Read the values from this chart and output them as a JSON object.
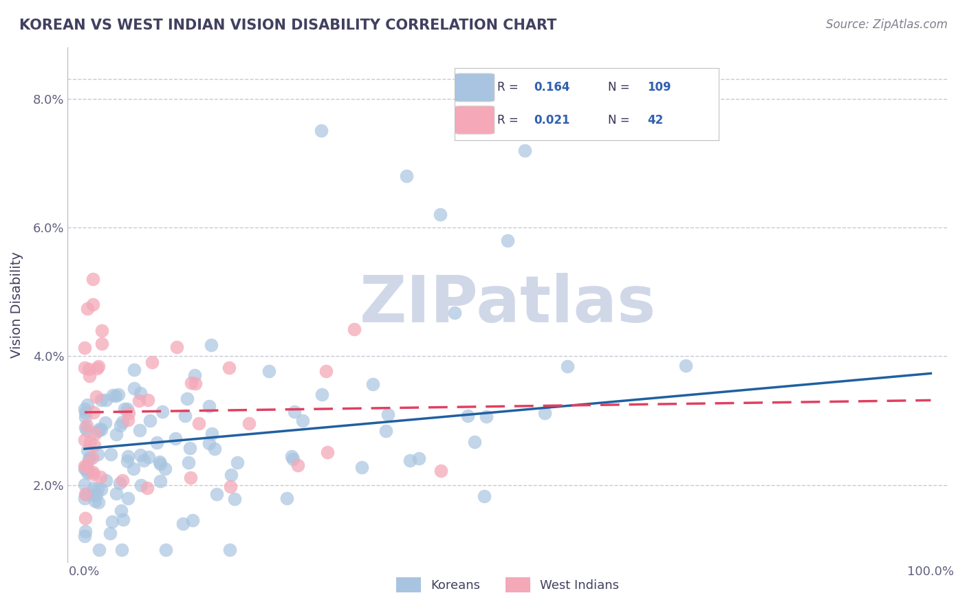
{
  "title": "KOREAN VS WEST INDIAN VISION DISABILITY CORRELATION CHART",
  "source": "Source: ZipAtlas.com",
  "ylabel": "Vision Disability",
  "xlim": [
    -0.02,
    1.02
  ],
  "ylim": [
    0.008,
    0.088
  ],
  "yticks": [
    0.02,
    0.04,
    0.06,
    0.08
  ],
  "ytick_labels": [
    "2.0%",
    "4.0%",
    "6.0%",
    "8.0%"
  ],
  "xticks": [
    0.0,
    1.0
  ],
  "xtick_labels": [
    "0.0%",
    "100.0%"
  ],
  "korean_R": 0.164,
  "korean_N": 109,
  "westindian_R": 0.021,
  "westindian_N": 42,
  "korean_color": "#a8c4e0",
  "westindian_color": "#f4a8b8",
  "korean_line_color": "#2060a0",
  "westindian_line_color": "#e04060",
  "background_color": "#ffffff",
  "grid_color": "#c8c8d8",
  "title_color": "#404060",
  "watermark_color": "#d0d8e8",
  "legend_korean_label": "Koreans",
  "legend_westindian_label": "West Indians"
}
